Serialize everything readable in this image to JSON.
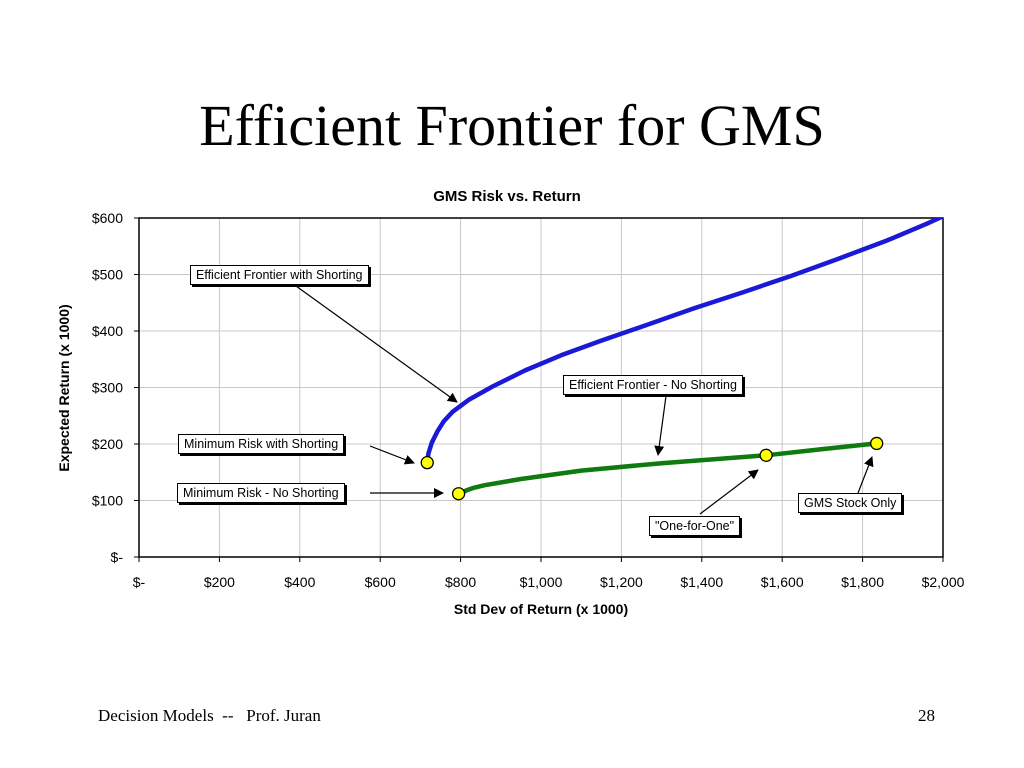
{
  "slide": {
    "title": "Efficient Frontier for GMS",
    "footer_left": "Decision Models  --   Prof. Juran",
    "page_number": "28"
  },
  "chart_data": {
    "type": "line",
    "title": "GMS Risk vs. Return",
    "xlabel": "Std Dev of Return (x 1000)",
    "ylabel": "Expected Return (x 1000)",
    "xlim": [
      0,
      2000
    ],
    "ylim": [
      0,
      600
    ],
    "x_ticks": [
      0,
      200,
      400,
      600,
      800,
      1000,
      1200,
      1400,
      1600,
      1800,
      2000
    ],
    "x_tick_labels": [
      "$-",
      "$200",
      "$400",
      "$600",
      "$800",
      "$1,000",
      "$1,200",
      "$1,400",
      "$1,600",
      "$1,800",
      "$2,000"
    ],
    "y_ticks": [
      0,
      100,
      200,
      300,
      400,
      500,
      600
    ],
    "y_tick_labels": [
      "$-",
      "$100",
      "$200",
      "$300",
      "$400",
      "$500",
      "$600"
    ],
    "grid": true,
    "series": [
      {
        "color": "#1a1ad6",
        "points": [
          [
            717,
            167
          ],
          [
            720,
            183
          ],
          [
            728,
            202
          ],
          [
            742,
            222
          ],
          [
            758,
            240
          ],
          [
            780,
            257
          ],
          [
            820,
            278
          ],
          [
            880,
            302
          ],
          [
            960,
            330
          ],
          [
            1050,
            357
          ],
          [
            1150,
            383
          ],
          [
            1260,
            410
          ],
          [
            1380,
            440
          ],
          [
            1500,
            468
          ],
          [
            1620,
            497
          ],
          [
            1740,
            528
          ],
          [
            1860,
            560
          ],
          [
            1960,
            590
          ],
          [
            2000,
            603
          ]
        ]
      },
      {
        "color": "#0f7a0f",
        "points": [
          [
            795,
            112
          ],
          [
            800,
            113
          ],
          [
            815,
            118
          ],
          [
            830,
            122
          ],
          [
            860,
            127
          ],
          [
            950,
            138
          ],
          [
            1100,
            153
          ],
          [
            1300,
            166
          ],
          [
            1560,
            180
          ],
          [
            1700,
            191
          ],
          [
            1835,
            201
          ]
        ]
      }
    ],
    "markers": [
      {
        "x": 717,
        "y": 167
      },
      {
        "x": 795,
        "y": 112
      },
      {
        "x": 1560,
        "y": 180
      },
      {
        "x": 1835,
        "y": 201
      }
    ],
    "marker_color": "#ffff00",
    "annotations": {
      "ef_shorting": "Efficient Frontier with Shorting",
      "ef_no_shorting": "Efficient Frontier - No Shorting",
      "min_risk_shorting": "Minimum Risk with Shorting",
      "min_risk_no_shorting": "Minimum Risk - No Shorting",
      "one_for_one": "\"One-for-One\"",
      "gms_stock_only": "GMS Stock Only"
    }
  }
}
